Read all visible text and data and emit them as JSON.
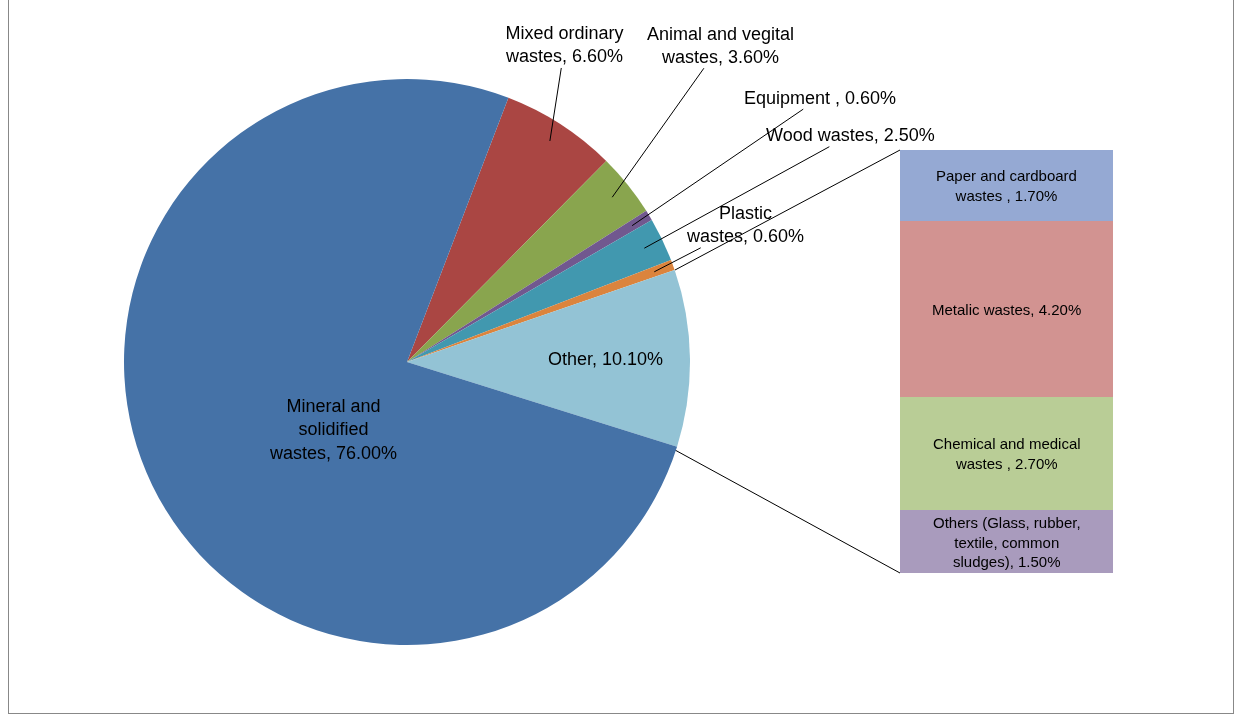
{
  "chart_data": [
    {
      "type": "pie",
      "categories": [
        "Mixed ordinary wastes",
        "Animal and vegital wastes",
        "Equipment ",
        "Wood wastes",
        "Plastic wastes",
        "Other",
        "Mineral and solidified wastes"
      ],
      "values": [
        6.6,
        3.6,
        0.6,
        2.5,
        0.6,
        10.1,
        76.0
      ],
      "colors": [
        "#aa4643",
        "#89a54e",
        "#71588f",
        "#4198af",
        "#db843d",
        "#93c3d5",
        "#4572a7"
      ],
      "value_labels": [
        "6.60%",
        "3.60%",
        "0.60%",
        "2.50%",
        "0.60%",
        "10.10%",
        "76.00%"
      ],
      "legend": false
    },
    {
      "type": "bar",
      "stacked": true,
      "categories": [
        null
      ],
      "series": [
        {
          "color": "#a99bbd",
          "values": [
            1.5
          ],
          "value_labels": [
            "Others (Glass, rubber, textile, common sludges), 1.50%"
          ]
        },
        {
          "color": "#b9cd96",
          "values": [
            2.7
          ],
          "value_labels": [
            "Chemical and medical wastes , 2.70%"
          ]
        },
        {
          "color": "#d29391",
          "values": [
            4.2
          ],
          "value_labels": [
            "Metalic wastes, 4.20%"
          ]
        },
        {
          "color": "#95a9d3",
          "values": [
            1.7
          ],
          "value_labels": [
            "Paper and cardboard wastes , 1.70%"
          ]
        }
      ],
      "legend": false
    }
  ]
}
